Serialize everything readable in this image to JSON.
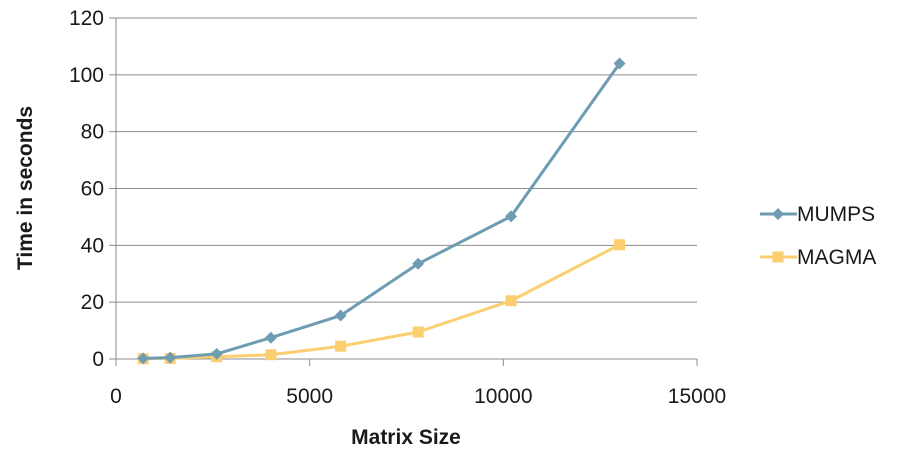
{
  "chart_data": {
    "type": "line",
    "title": "",
    "xlabel": "Matrix Size",
    "ylabel": "Time in seconds",
    "xlim": [
      0,
      15000
    ],
    "ylim": [
      0,
      120
    ],
    "xticks": [
      0,
      5000,
      10000,
      15000
    ],
    "yticks": [
      0,
      20,
      40,
      60,
      80,
      100,
      120
    ],
    "xtick_labels": [
      "0",
      "5000",
      "10000",
      "15000"
    ],
    "ytick_labels": [
      "0",
      "20",
      "40",
      "60",
      "80",
      "100",
      "120"
    ],
    "grid": "horizontal",
    "legend_position": "right",
    "series": [
      {
        "name": "MUMPS",
        "color": "#6e9cb3",
        "marker": "diamond",
        "x": [
          700,
          1400,
          2600,
          4000,
          5800,
          7800,
          10200,
          13000
        ],
        "y": [
          0.2,
          0.5,
          1.8,
          7.5,
          15.3,
          33.5,
          50.2,
          104
        ]
      },
      {
        "name": "MAGMA",
        "color": "#fbcf70",
        "marker": "square",
        "x": [
          700,
          1400,
          2600,
          4000,
          5800,
          7800,
          10200,
          13000
        ],
        "y": [
          0.1,
          0.2,
          0.8,
          1.5,
          4.5,
          9.5,
          20.5,
          40.2
        ]
      }
    ]
  }
}
